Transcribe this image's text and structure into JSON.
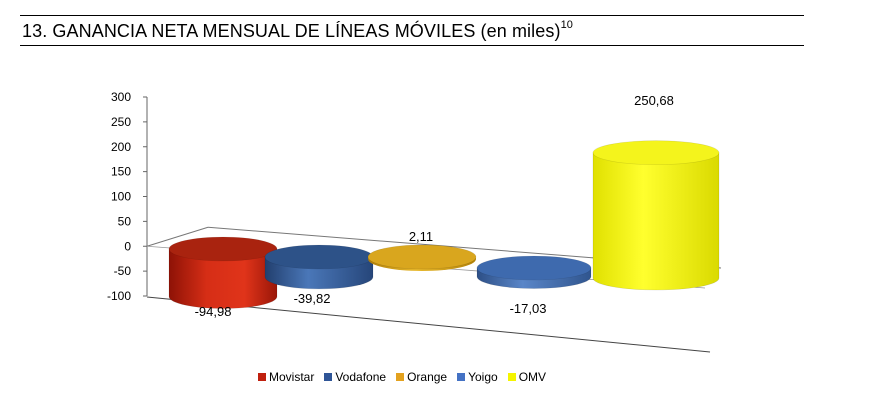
{
  "title": {
    "text": "13. GANANCIA NETA MENSUAL DE LÍNEAS MÓVILES (en miles)",
    "footnote": "10"
  },
  "chart_data": {
    "type": "bar",
    "style": "3d-cylinder",
    "categories": [
      "Movistar",
      "Vodafone",
      "Orange",
      "Yoigo",
      "OMV"
    ],
    "values": [
      -94.98,
      -39.82,
      2.11,
      -17.03,
      250.68
    ],
    "value_labels": [
      "-94,98",
      "-39,82",
      "2,11",
      "-17,03",
      "250,68"
    ],
    "colors": [
      "#cc2a14",
      "#3d69a8",
      "#e0ae1c",
      "#4f79bd",
      "#f2f21a"
    ],
    "ylim": [
      -100,
      300
    ],
    "y_ticks": [
      "300",
      "250",
      "200",
      "150",
      "100",
      "50",
      "0",
      "-50",
      "-100"
    ],
    "legend_position": "bottom",
    "grid": false
  },
  "legend": [
    {
      "label": "Movistar",
      "color": "#c0200e"
    },
    {
      "label": "Vodafone",
      "color": "#2f5597"
    },
    {
      "label": "Orange",
      "color": "#e3a21f"
    },
    {
      "label": "Yoigo",
      "color": "#4472c4"
    },
    {
      "label": "OMV",
      "color": "#f5f500"
    }
  ]
}
